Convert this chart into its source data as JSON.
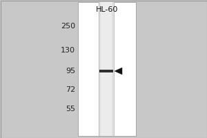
{
  "fig_bg": "#c8c8c8",
  "panel_bg": "#ffffff",
  "lane_bg": "#d8d8d8",
  "band_color": [
    30,
    30,
    30
  ],
  "arrow_color": "#111111",
  "marker_labels": [
    "250",
    "130",
    "95",
    "72",
    "55"
  ],
  "cell_line_label": "HL-60",
  "title_fontsize": 8,
  "marker_fontsize": 8,
  "border_color": "#888888",
  "outer_bg": "#c0c0c0"
}
